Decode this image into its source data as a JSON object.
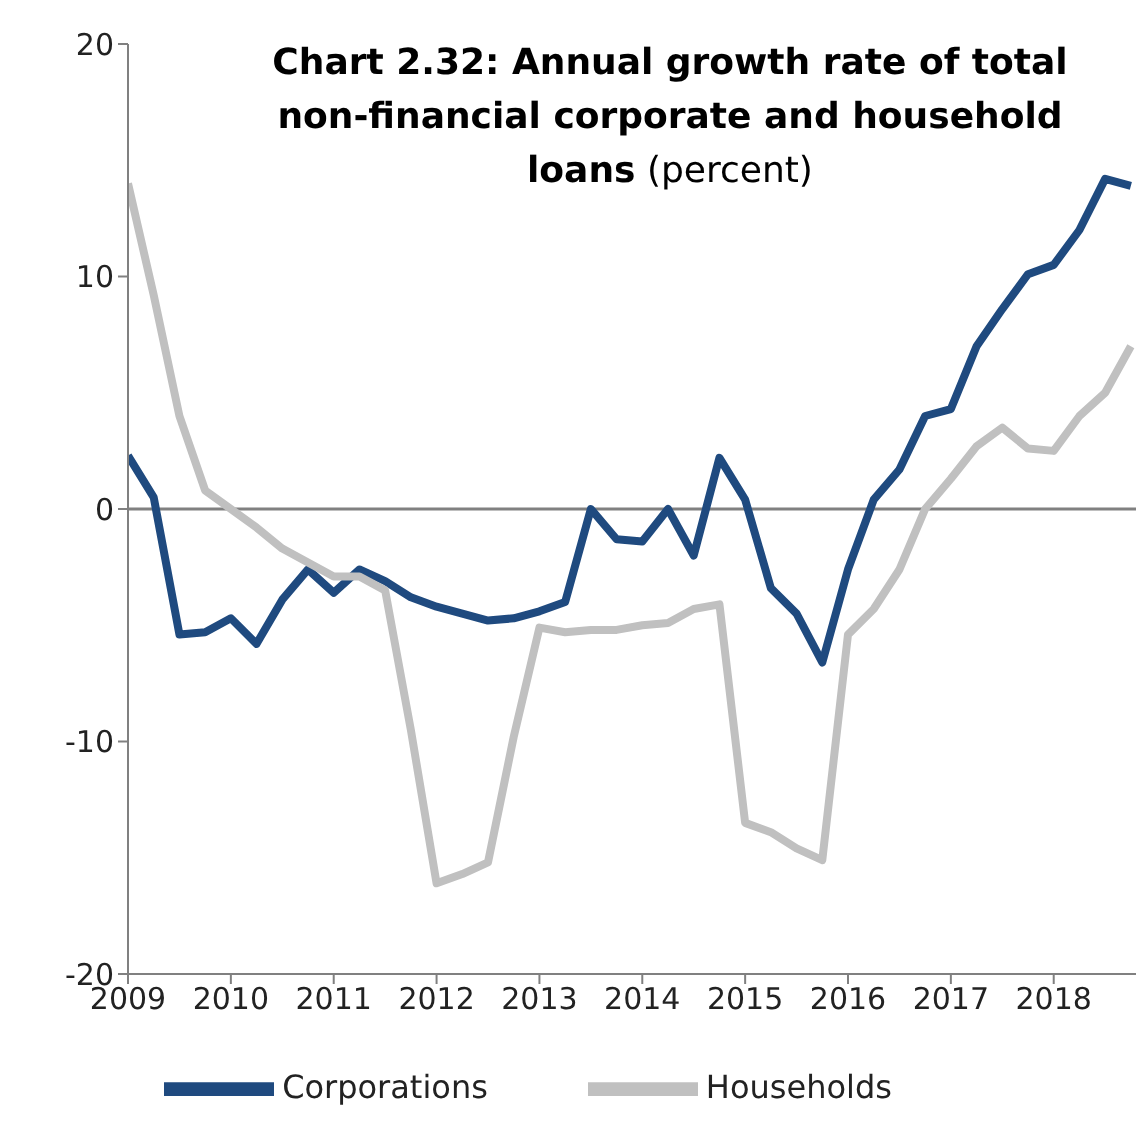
{
  "chart_data": {
    "type": "line",
    "title": "Chart 2.32: Annual growth rate of total non-financial corporate and household loans",
    "subtitle": "(percent)",
    "x": [
      2009,
      2009.25,
      2009.5,
      2009.75,
      2010,
      2010.25,
      2010.5,
      2010.75,
      2011,
      2011.25,
      2011.5,
      2011.75,
      2012,
      2012.25,
      2012.5,
      2012.75,
      2013,
      2013.25,
      2013.5,
      2013.75,
      2014,
      2014.25,
      2014.5,
      2014.75,
      2015,
      2015.25,
      2015.5,
      2015.75,
      2016,
      2016.25,
      2016.5,
      2016.75,
      2017,
      2017.25,
      2017.5,
      2017.75,
      2018,
      2018.25,
      2018.5,
      2018.75
    ],
    "series": [
      {
        "name": "Corporations",
        "color": "#1f4a7f",
        "values": [
          2.3,
          0.5,
          -5.4,
          -5.3,
          -4.7,
          -5.8,
          -3.9,
          -2.6,
          -3.6,
          -2.6,
          -3.1,
          -3.8,
          -4.2,
          -4.5,
          -4.8,
          -4.7,
          -4.4,
          -4.0,
          0.0,
          -1.3,
          -1.4,
          0.0,
          -2.0,
          2.2,
          0.4,
          -3.4,
          -4.5,
          -6.6,
          -2.6,
          0.4,
          1.7,
          4.0,
          4.3,
          7.0,
          8.6,
          10.1,
          10.5,
          12.0,
          14.2,
          13.9
        ]
      },
      {
        "name": "Households",
        "color": "#c0c0c0",
        "values": [
          14.0,
          9.2,
          4.0,
          0.8,
          0.0,
          -0.8,
          -1.7,
          -2.3,
          -2.9,
          -2.9,
          -3.5,
          -9.5,
          -16.1,
          -15.7,
          -15.2,
          -9.8,
          -5.1,
          -5.3,
          -5.2,
          -5.2,
          -5.0,
          -4.9,
          -4.3,
          -4.1,
          -13.5,
          -13.9,
          -14.6,
          -15.1,
          -5.4,
          -4.3,
          -2.6,
          0.0,
          1.3,
          2.7,
          3.5,
          2.6,
          2.5,
          4.0,
          5.0,
          7.0
        ]
      }
    ],
    "xlim": [
      2009,
      2018.8
    ],
    "xticks": [
      2009,
      2010,
      2011,
      2012,
      2013,
      2014,
      2015,
      2016,
      2017,
      2018
    ],
    "ylim": [
      -20,
      20
    ],
    "yticks": [
      -20,
      -10,
      0,
      10,
      20
    ],
    "ref_lines": [
      {
        "axis": "y",
        "value": 0,
        "color": "#808080"
      }
    ],
    "grid": false,
    "legend": "bottom",
    "marker": "none",
    "line_style": "solid"
  }
}
